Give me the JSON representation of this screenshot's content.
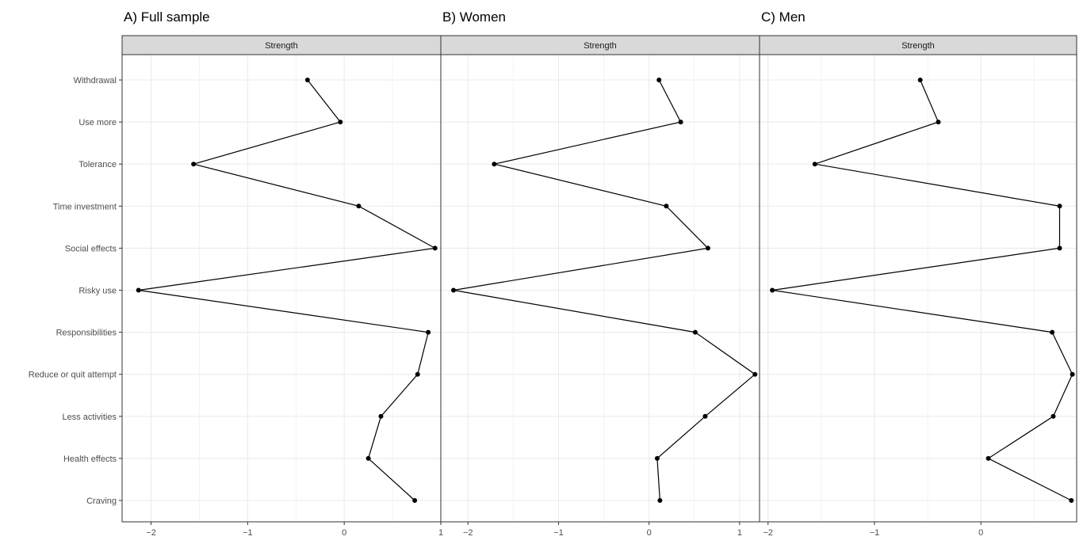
{
  "chart_data": [
    {
      "type": "line",
      "title": "A) Full sample",
      "strip": "Strength",
      "categories": [
        "Withdrawal",
        "Use more",
        "Tolerance",
        "Time investment",
        "Social effects",
        "Risky use",
        "Responsibilities",
        "Reduce or quit attempt",
        "Less activities",
        "Health effects",
        "Craving"
      ],
      "values": [
        -0.38,
        -0.04,
        -1.56,
        0.15,
        0.94,
        -2.13,
        0.87,
        0.76,
        0.38,
        0.25,
        0.73
      ],
      "xlim": [
        -2.3,
        1.0
      ],
      "xticks": [
        -2,
        -1,
        0,
        1
      ],
      "xtick_labels": [
        "−2",
        "−1",
        "0",
        "1"
      ],
      "grid": true
    },
    {
      "type": "line",
      "title": "B) Women",
      "strip": "Strength",
      "categories": [
        "Withdrawal",
        "Use more",
        "Tolerance",
        "Time investment",
        "Social effects",
        "Risky use",
        "Responsibilities",
        "Reduce or quit attempt",
        "Less activities",
        "Health effects",
        "Craving"
      ],
      "values": [
        0.11,
        0.35,
        -1.71,
        0.19,
        0.65,
        -2.16,
        0.51,
        1.17,
        0.62,
        0.09,
        0.12
      ],
      "xlim": [
        -2.3,
        1.22
      ],
      "xticks": [
        -2,
        -1,
        0,
        1
      ],
      "xtick_labels": [
        "−2",
        "−1",
        "0",
        "1"
      ],
      "grid": true
    },
    {
      "type": "line",
      "title": "C) Men",
      "strip": "Strength",
      "categories": [
        "Withdrawal",
        "Use more",
        "Tolerance",
        "Time investment",
        "Social effects",
        "Risky use",
        "Responsibilities",
        "Reduce or quit attempt",
        "Less activities",
        "Health effects",
        "Craving"
      ],
      "values": [
        -0.57,
        -0.4,
        -1.56,
        0.74,
        0.74,
        -1.96,
        0.67,
        0.86,
        0.68,
        0.07,
        0.85
      ],
      "xlim": [
        -2.08,
        0.9
      ],
      "xticks": [
        -2,
        -1,
        0
      ],
      "xtick_labels": [
        "−2",
        "−1",
        "0"
      ],
      "grid": true
    }
  ]
}
